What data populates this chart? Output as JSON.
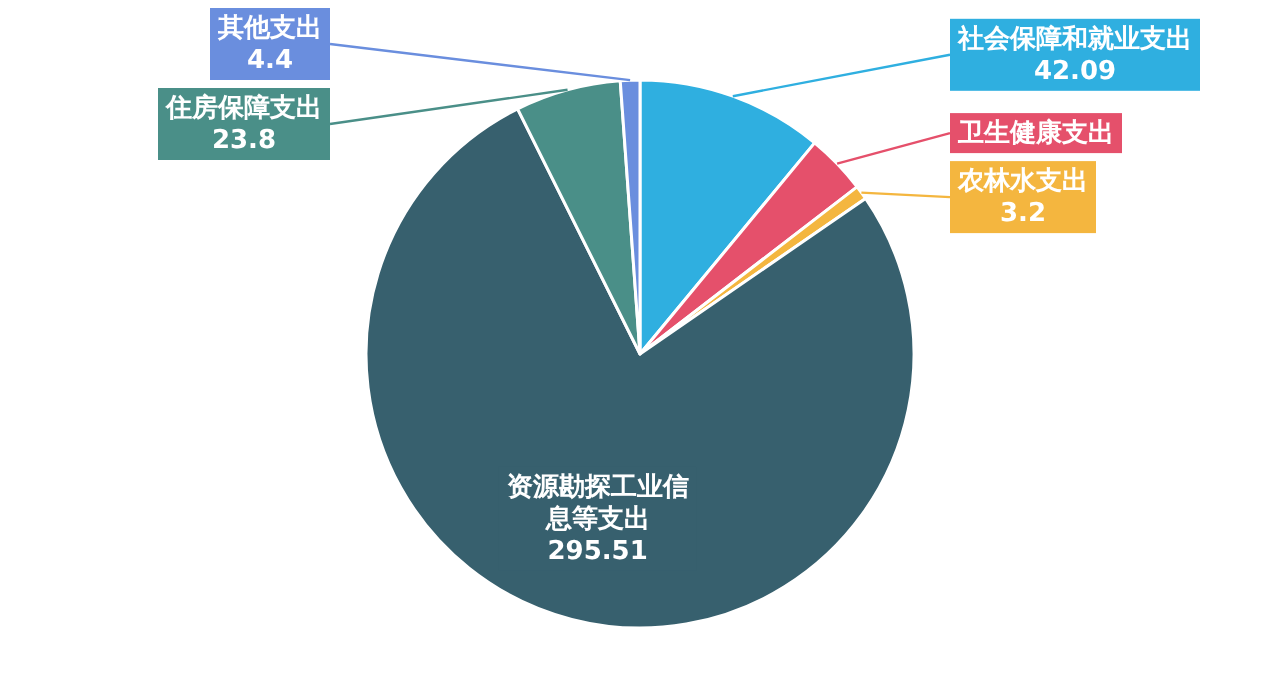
{
  "chart_data": {
    "type": "pie",
    "categories": [
      "社会保障和就业支出",
      "卫生健康支出",
      "农林水支出",
      "资源勘探工业信息等支出",
      "住房保障支出",
      "其他支出"
    ],
    "values": [
      42.09,
      13.6,
      3.2,
      295.51,
      23.8,
      4.4
    ],
    "value_labels": [
      "42.09",
      null,
      "3.2",
      "295.51",
      "23.8",
      "4.4"
    ],
    "colors": [
      "#2fafe0",
      "#e5506b",
      "#f4b63f",
      "#37606e",
      "#4a8f88",
      "#6a8ede"
    ],
    "legend": false
  }
}
